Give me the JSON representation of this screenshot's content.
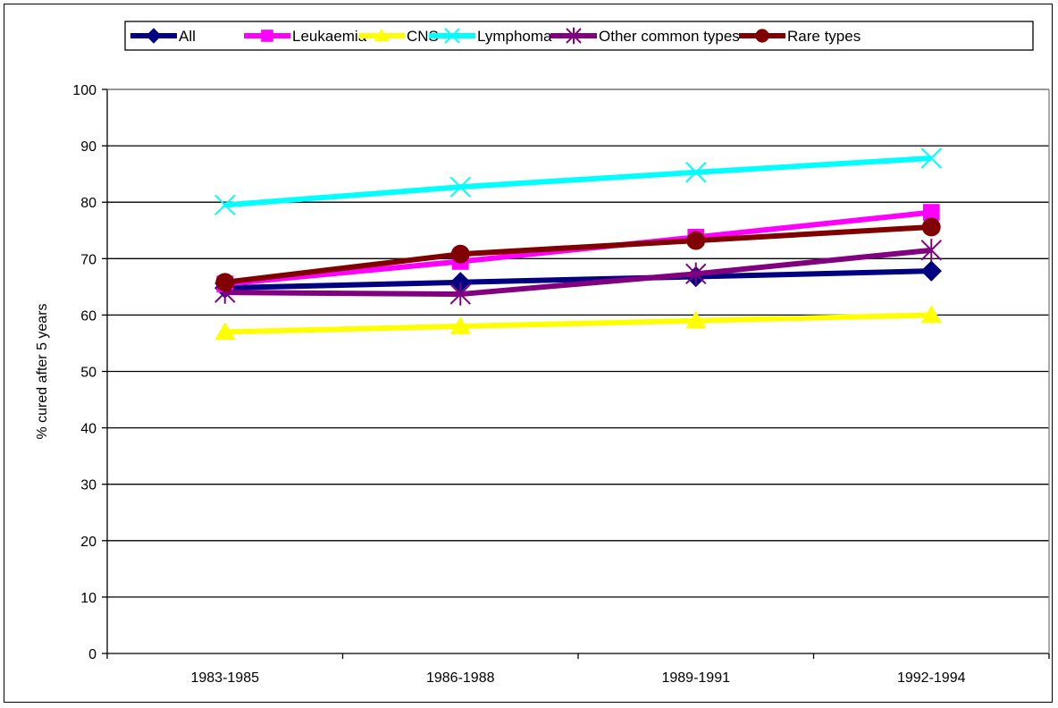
{
  "chart_data": {
    "type": "line",
    "title": "",
    "xlabel": "",
    "ylabel": "% cured after 5 years",
    "categories": [
      "1983-1985",
      "1986-1988",
      "1989-1991",
      "1992-1994"
    ],
    "ylim": [
      0,
      100
    ],
    "yticks": [
      0,
      10,
      20,
      30,
      40,
      50,
      60,
      70,
      80,
      90,
      100
    ],
    "grid": true,
    "legend_position": "top",
    "series": [
      {
        "name": "All",
        "values": [
          64.8,
          65.8,
          66.8,
          67.8
        ],
        "color": "#000080",
        "marker": "diamond"
      },
      {
        "name": "Leukaemia",
        "values": [
          65.5,
          69.5,
          73.8,
          78.2
        ],
        "color": "#FF00FF",
        "marker": "square"
      },
      {
        "name": "CNS",
        "values": [
          57.0,
          58.0,
          59.0,
          60.0
        ],
        "color": "#FFFF00",
        "marker": "triangle"
      },
      {
        "name": "Lymphoma",
        "values": [
          79.5,
          82.7,
          85.3,
          87.8
        ],
        "color": "#00FFFF",
        "marker": "x"
      },
      {
        "name": "Other common types",
        "values": [
          64.0,
          63.7,
          67.3,
          71.5
        ],
        "color": "#800080",
        "marker": "asterisk"
      },
      {
        "name": "Rare types",
        "values": [
          65.8,
          70.8,
          73.2,
          75.6
        ],
        "color": "#800000",
        "marker": "circle"
      }
    ]
  }
}
